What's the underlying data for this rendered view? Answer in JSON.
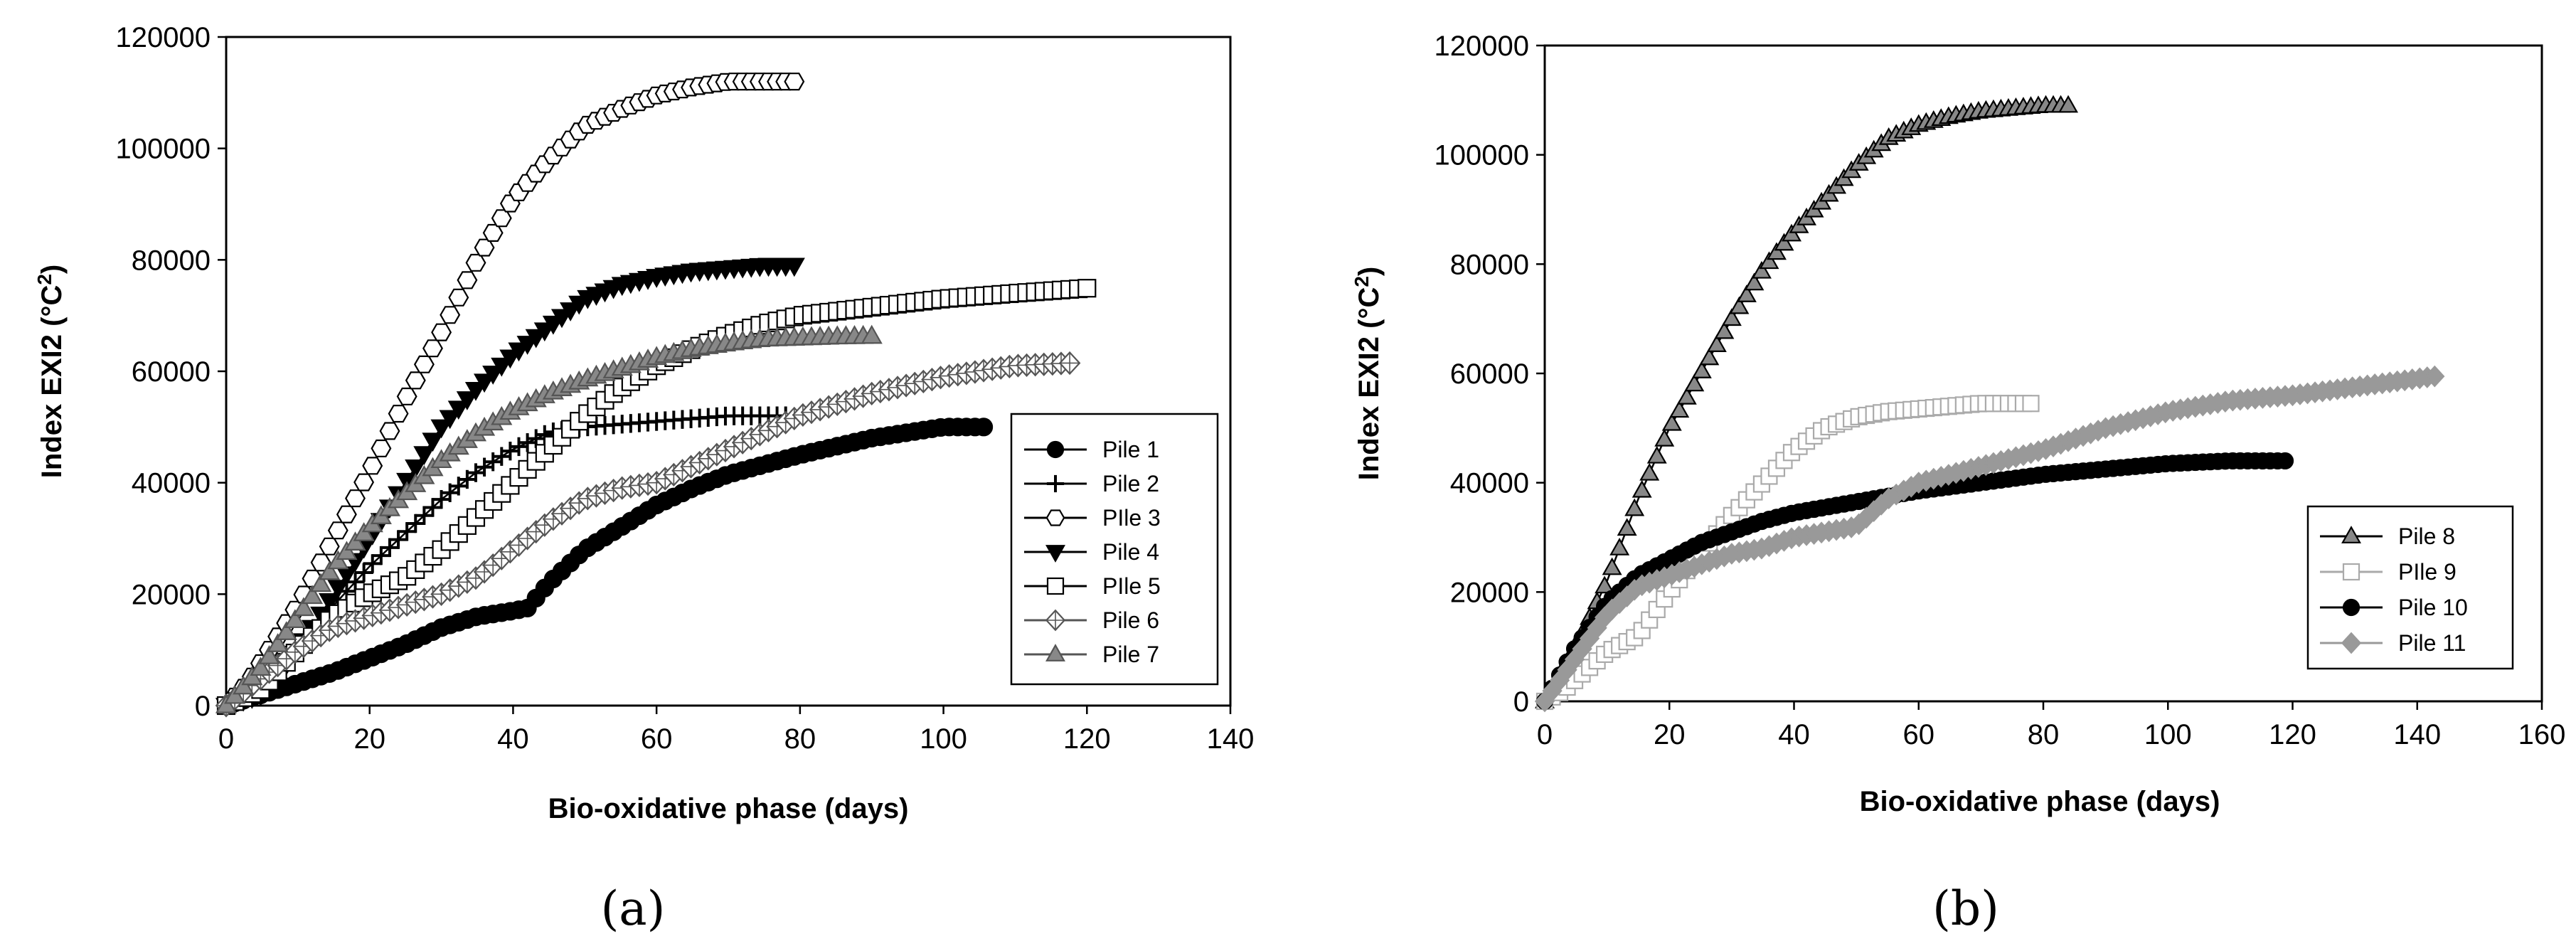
{
  "chart_data": [
    {
      "type": "line",
      "panel_label": "(a)",
      "xlabel": "Bio-oxidative phase (days)",
      "ylabel": "Index EXI2 (°C²)",
      "ylabel_parts": {
        "pre": "Index EXI2 (°C",
        "sup": "2",
        "post": ")"
      },
      "xlim": [
        0,
        140
      ],
      "ylim": [
        0,
        120000
      ],
      "xticks": [
        0,
        20,
        40,
        60,
        80,
        100,
        120,
        140
      ],
      "yticks": [
        0,
        20000,
        40000,
        60000,
        80000,
        100000,
        120000
      ],
      "legend_position": "right-center",
      "series": [
        {
          "name": "Pile 1",
          "color": "#000000",
          "marker": "circle",
          "fill": "#000000",
          "x": [
            0,
            5,
            10,
            15,
            20,
            25,
            30,
            35,
            40,
            42,
            45,
            50,
            55,
            60,
            65,
            70,
            80,
            90,
            100,
            106
          ],
          "y": [
            0,
            2000,
            4000,
            6000,
            8500,
            11000,
            14000,
            16000,
            17000,
            17500,
            22000,
            28000,
            32000,
            36000,
            39000,
            41500,
            45000,
            48000,
            50000,
            50000
          ]
        },
        {
          "name": "Pile 2",
          "color": "#000000",
          "marker": "plus",
          "fill": "#000000",
          "x": [
            0,
            5,
            10,
            15,
            20,
            25,
            30,
            35,
            40,
            45,
            50,
            55,
            60,
            65,
            70,
            75,
            78
          ],
          "y": [
            0,
            3000,
            10000,
            18000,
            25000,
            31000,
            37000,
            42000,
            46000,
            49000,
            50000,
            50500,
            51000,
            51500,
            52000,
            52000,
            52000
          ]
        },
        {
          "name": "PIle 3",
          "color": "#000000",
          "marker": "hexagon",
          "fill": "#ffffff",
          "x": [
            0,
            3,
            6,
            10,
            15,
            20,
            25,
            30,
            35,
            40,
            45,
            50,
            55,
            60,
            65,
            70,
            75,
            80
          ],
          "y": [
            0,
            4000,
            10000,
            18000,
            30000,
            42000,
            55000,
            67000,
            80000,
            91000,
            98000,
            104000,
            107000,
            109500,
            111000,
            112000,
            112000,
            112000
          ]
        },
        {
          "name": "Pile 4",
          "color": "#000000",
          "marker": "tri-down",
          "fill": "#000000",
          "x": [
            0,
            5,
            10,
            15,
            20,
            25,
            30,
            35,
            40,
            45,
            50,
            55,
            60,
            65,
            70,
            75,
            80
          ],
          "y": [
            0,
            2000,
            10000,
            20000,
            30000,
            40000,
            50000,
            57000,
            63000,
            68000,
            73000,
            75500,
            77000,
            78000,
            78500,
            79000,
            79000
          ]
        },
        {
          "name": "PIle 5",
          "color": "#000000",
          "marker": "square",
          "fill": "#ffffff",
          "x": [
            0,
            5,
            10,
            15,
            20,
            25,
            30,
            35,
            40,
            45,
            50,
            55,
            60,
            65,
            70,
            75,
            80,
            90,
            100,
            110,
            121
          ],
          "y": [
            0,
            3000,
            10000,
            16000,
            20000,
            23000,
            28000,
            34000,
            40000,
            46000,
            52000,
            57000,
            61000,
            64000,
            66500,
            68500,
            70000,
            71500,
            73000,
            74000,
            75000
          ]
        },
        {
          "name": "Pile 6",
          "color": "#555555",
          "marker": "diamond",
          "fill": "#ffffff",
          "x": [
            0,
            5,
            10,
            15,
            20,
            25,
            30,
            35,
            40,
            45,
            50,
            55,
            60,
            65,
            70,
            75,
            80,
            90,
            100,
            110,
            118
          ],
          "y": [
            0,
            5000,
            10000,
            14000,
            16000,
            18000,
            20000,
            23000,
            28000,
            33000,
            37000,
            39000,
            40000,
            43000,
            46000,
            49000,
            52000,
            56000,
            59000,
            61000,
            61500
          ]
        },
        {
          "name": "Pile 7",
          "color": "#555555",
          "marker": "tri-up",
          "fill": "#888888",
          "x": [
            0,
            5,
            10,
            15,
            20,
            25,
            30,
            35,
            40,
            45,
            50,
            55,
            60,
            65,
            70,
            75,
            80,
            85,
            90
          ],
          "y": [
            0,
            7000,
            16000,
            25000,
            32000,
            38000,
            44000,
            49000,
            53000,
            56000,
            58500,
            60500,
            62500,
            64000,
            65000,
            65800,
            66000,
            66200,
            66300
          ]
        }
      ]
    },
    {
      "type": "line",
      "panel_label": "(b)",
      "xlabel": "Bio-oxidative phase (days)",
      "ylabel": "Index EXI2 (°C²)",
      "ylabel_parts": {
        "pre": "Index EXI2 (°C",
        "sup": "2",
        "post": ")"
      },
      "xlim": [
        0,
        160
      ],
      "ylim": [
        0,
        120000
      ],
      "xticks": [
        0,
        20,
        40,
        60,
        80,
        100,
        120,
        140,
        160
      ],
      "yticks": [
        0,
        20000,
        40000,
        60000,
        80000,
        100000,
        120000
      ],
      "legend_position": "bottom-right",
      "series": [
        {
          "name": "Pile 8",
          "color": "#000000",
          "marker": "tri-up",
          "fill": "#888888",
          "x": [
            0,
            5,
            10,
            15,
            20,
            25,
            30,
            35,
            40,
            45,
            50,
            55,
            60,
            65,
            70,
            75,
            80,
            84
          ],
          "y": [
            0,
            10000,
            22000,
            37000,
            50000,
            60000,
            70000,
            79000,
            86000,
            92000,
            98000,
            103000,
            105500,
            107000,
            108000,
            108500,
            109000,
            109000
          ]
        },
        {
          "name": "PIle 9",
          "color": "#aaaaaa",
          "marker": "square",
          "fill": "#ffffff",
          "x": [
            0,
            3,
            5,
            8,
            10,
            15,
            20,
            25,
            30,
            35,
            40,
            45,
            50,
            55,
            60,
            65,
            70,
            78
          ],
          "y": [
            0,
            2000,
            4000,
            7000,
            9000,
            12000,
            20000,
            27000,
            34000,
            40000,
            46000,
            50000,
            52000,
            53000,
            53500,
            54000,
            54500,
            54500
          ]
        },
        {
          "name": "Pile 10",
          "color": "#000000",
          "marker": "circle",
          "fill": "#000000",
          "x": [
            0,
            5,
            10,
            15,
            20,
            25,
            30,
            35,
            40,
            50,
            55,
            60,
            70,
            80,
            90,
            100,
            110,
            119
          ],
          "y": [
            0,
            10000,
            18000,
            23000,
            26000,
            29000,
            31000,
            33000,
            34500,
            36500,
            37500,
            38500,
            40000,
            41500,
            42500,
            43500,
            44000,
            44000
          ]
        },
        {
          "name": "Pile 11",
          "color": "#999999",
          "marker": "diamond",
          "fill": "#999999",
          "x": [
            0,
            5,
            10,
            15,
            20,
            25,
            30,
            35,
            40,
            45,
            50,
            55,
            60,
            70,
            80,
            90,
            100,
            110,
            120,
            130,
            143
          ],
          "y": [
            0,
            8000,
            16000,
            21000,
            23000,
            25000,
            27000,
            28000,
            30000,
            31000,
            32000,
            37000,
            40000,
            43000,
            46000,
            50000,
            53000,
            55000,
            56000,
            57500,
            59500
          ]
        }
      ]
    }
  ]
}
